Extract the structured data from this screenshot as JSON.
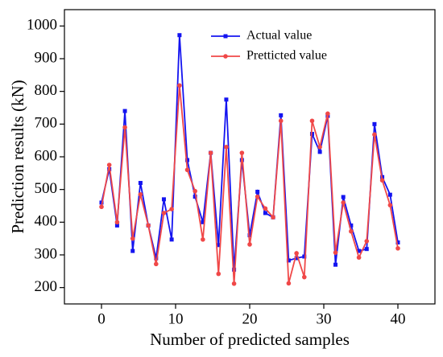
{
  "chart_data": {
    "type": "line",
    "xlabel": "Number of predicted samples",
    "ylabel": "Prediction results (kN)",
    "xlim": [
      -5,
      45
    ],
    "ylim": [
      150,
      1050
    ],
    "xticks": [
      0,
      10,
      20,
      30,
      40
    ],
    "yticks": [
      200,
      300,
      400,
      500,
      600,
      700,
      800,
      900,
      1000
    ],
    "legend": "top",
    "x": [
      0,
      1.05,
      2.11,
      3.16,
      4.21,
      5.26,
      6.32,
      7.37,
      8.42,
      9.47,
      10.53,
      11.58,
      12.63,
      13.68,
      14.74,
      15.79,
      16.84,
      17.89,
      18.95,
      20,
      21.05,
      22.11,
      23.16,
      24.21,
      25.26,
      26.32,
      27.37,
      28.42,
      29.47,
      30.53,
      31.58,
      32.63,
      33.68,
      34.74,
      35.79,
      36.84,
      37.89,
      38.95,
      40
    ],
    "series": [
      {
        "name": "Actual value",
        "color": "#1414f0",
        "marker": "square",
        "values": [
          460,
          562,
          390,
          740,
          312,
          520,
          390,
          290,
          470,
          347,
          972,
          590,
          478,
          400,
          612,
          330,
          775,
          255,
          590,
          360,
          493,
          428,
          415,
          727,
          283,
          290,
          295,
          670,
          615,
          725,
          270,
          477,
          390,
          312,
          318,
          700,
          538,
          484,
          338
        ]
      },
      {
        "name": "Pretticted value",
        "color": "#f04848",
        "marker": "circle",
        "values": [
          447,
          575,
          400,
          690,
          350,
          485,
          390,
          272,
          428,
          440,
          818,
          560,
          495,
          347,
          612,
          242,
          630,
          212,
          612,
          332,
          478,
          442,
          415,
          710,
          213,
          305,
          232,
          710,
          630,
          732,
          307,
          460,
          372,
          292,
          342,
          668,
          528,
          452,
          320
        ]
      }
    ]
  }
}
